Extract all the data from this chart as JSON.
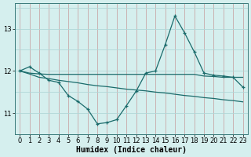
{
  "x": [
    0,
    1,
    2,
    3,
    4,
    5,
    6,
    7,
    8,
    9,
    10,
    11,
    12,
    13,
    14,
    15,
    16,
    17,
    18,
    19,
    20,
    21,
    22,
    23
  ],
  "line_main": [
    12.0,
    12.1,
    11.95,
    11.78,
    11.73,
    11.42,
    11.28,
    11.1,
    10.75,
    10.78,
    10.85,
    11.18,
    11.52,
    11.95,
    12.0,
    12.62,
    13.3,
    12.9,
    12.45,
    11.95,
    11.9,
    11.88,
    11.85,
    11.62
  ],
  "line_upper": [
    12.0,
    11.95,
    11.93,
    11.92,
    11.92,
    11.92,
    11.92,
    11.92,
    11.92,
    11.92,
    11.92,
    11.92,
    11.92,
    11.92,
    11.92,
    11.92,
    11.92,
    11.92,
    11.92,
    11.88,
    11.87,
    11.85,
    11.85,
    11.85
  ],
  "line_lower": [
    12.0,
    11.93,
    11.85,
    11.82,
    11.78,
    11.75,
    11.72,
    11.68,
    11.65,
    11.63,
    11.6,
    11.57,
    11.55,
    11.53,
    11.5,
    11.48,
    11.45,
    11.42,
    11.4,
    11.37,
    11.35,
    11.32,
    11.3,
    11.27
  ],
  "bg_color": "#d5efee",
  "line_color": "#1a6b6b",
  "grid_color_v": "#c8a8a8",
  "grid_color_h": "#b0d8d8",
  "xlabel": "Humidex (Indice chaleur)",
  "xlabel_fontsize": 7,
  "ytick_labels": [
    "11",
    "12",
    "13"
  ],
  "yticks": [
    11,
    12,
    13
  ],
  "xticks": [
    0,
    1,
    2,
    3,
    4,
    5,
    6,
    7,
    8,
    9,
    10,
    11,
    12,
    13,
    14,
    15,
    16,
    17,
    18,
    19,
    20,
    21,
    22,
    23
  ],
  "ylim": [
    10.5,
    13.6
  ],
  "xlim": [
    -0.5,
    23.5
  ]
}
